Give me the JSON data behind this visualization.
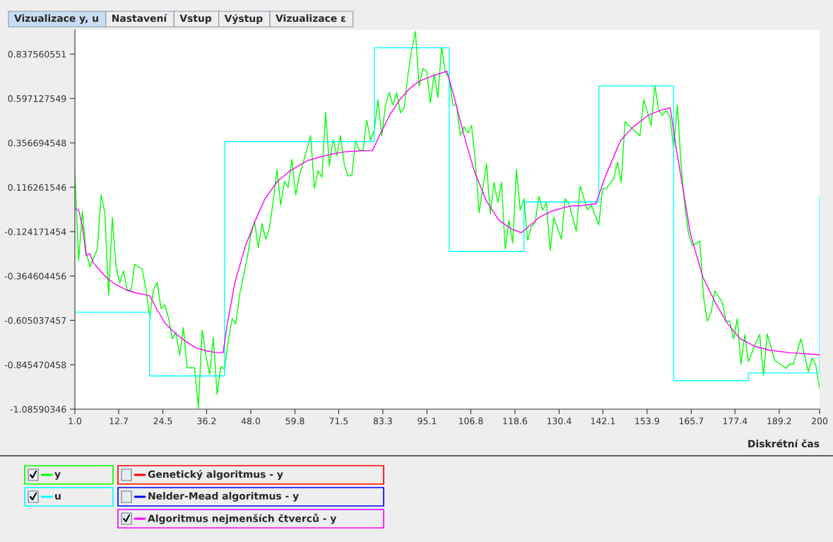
{
  "chart_data": {
    "type": "line",
    "xlabel": "Diskrétní čas",
    "annotations": [
      "Vizualizace y, u",
      "Nastavení",
      "Vstup",
      "Výstup",
      "Vizualizace ε",
      "Genetický algoritmus - y",
      "Nelder-Mead algoritmus - y"
    ],
    "xlim": [
      1,
      200
    ],
    "ylim": [
      -1.08590346,
      0.97
    ],
    "xticks": [
      {
        "value": 1,
        "label": "1.0"
      },
      12.7,
      24.5,
      36.2,
      {
        "value": 48,
        "label": "48.0"
      },
      59.8,
      71.5,
      83.3,
      95.1,
      106.8,
      118.6,
      130.4,
      142.1,
      153.9,
      165.7,
      177.4,
      189.2,
      200
    ],
    "yticks": [
      0.837560551,
      0.597127549,
      0.356694548,
      0.116261546,
      -0.124171454,
      -0.364604456,
      -0.605037457,
      -0.845470458,
      -1.08590346
    ],
    "grid": false,
    "legend": "bottom left",
    "series": [
      {
        "name": "y",
        "color": "#00ff00",
        "x": [
          1,
          2,
          3,
          4,
          5,
          7,
          8,
          9,
          10,
          11,
          12,
          13,
          14,
          15,
          16,
          17,
          19,
          20,
          21,
          22,
          23,
          24,
          25,
          26,
          27,
          28,
          29,
          30,
          31,
          33,
          34,
          35,
          36,
          37,
          38,
          39,
          40,
          41,
          42,
          43,
          44,
          45,
          47,
          48,
          49,
          50,
          51,
          52,
          53,
          54,
          55,
          56,
          57,
          58,
          59,
          60,
          61,
          64,
          65,
          66,
          67,
          68,
          69,
          70,
          71,
          72,
          73,
          74,
          75,
          76,
          77,
          78,
          79,
          80,
          81,
          82,
          83,
          84,
          85,
          86,
          87,
          88,
          89,
          90,
          91,
          92,
          93,
          94,
          95,
          96,
          97,
          98,
          99,
          100,
          101,
          102,
          103,
          104,
          105,
          106,
          107,
          108,
          109,
          110,
          111,
          112,
          113,
          114,
          115,
          116,
          117,
          118,
          119,
          120,
          121,
          122,
          123,
          124,
          125,
          126,
          127,
          128,
          129,
          131,
          132,
          133,
          135,
          136,
          138,
          139,
          141,
          142,
          143,
          145,
          146,
          147,
          148,
          149,
          152,
          153,
          155,
          156,
          157,
          158,
          159,
          160,
          161,
          162,
          163,
          164,
          165,
          166,
          168,
          169,
          170,
          171,
          172,
          174,
          175,
          176,
          177,
          178,
          179,
          180,
          181,
          183,
          184,
          185,
          186,
          188,
          191,
          192,
          193,
          195,
          197,
          198,
          199,
          200
        ],
        "values": [
          0.184,
          -0.281,
          -0.014,
          -0.233,
          -0.315,
          -0.219,
          0.075,
          -0.021,
          -0.468,
          -0.048,
          -0.315,
          -0.404,
          -0.336,
          -0.445,
          -0.438,
          -0.301,
          -0.329,
          -0.438,
          -0.589,
          -0.438,
          -0.4,
          -0.541,
          -0.52,
          -0.589,
          -0.705,
          -0.671,
          -0.794,
          -0.644,
          -0.862,
          -0.862,
          -1.08,
          -0.657,
          -0.794,
          -0.897,
          -0.698,
          -1.006,
          -0.856,
          -0.869,
          -0.712,
          -0.596,
          -0.623,
          -0.466,
          -0.274,
          -0.144,
          -0.069,
          -0.212,
          -0.082,
          -0.165,
          -0.103,
          0.041,
          0.212,
          0.02,
          0.15,
          0.116,
          0.266,
          0.075,
          0.178,
          0.396,
          0.109,
          0.205,
          0.171,
          0.52,
          0.232,
          0.376,
          0.287,
          0.396,
          0.239,
          0.178,
          0.18,
          0.369,
          0.317,
          0.317,
          0.479,
          0.369,
          0.424,
          0.588,
          0.396,
          0.561,
          0.629,
          0.561,
          0.629,
          0.52,
          0.547,
          0.725,
          0.862,
          0.96,
          0.663,
          0.759,
          0.745,
          0.574,
          0.732,
          0.602,
          0.875,
          0.739,
          0.711,
          0.561,
          0.561,
          0.396,
          0.444,
          0.41,
          0.451,
          0.26,
          -0.021,
          0.109,
          0.246,
          -0.028,
          0.143,
          0.034,
          0.143,
          -0.219,
          -0.062,
          -0.185,
          0.212,
          -0.007,
          0.054,
          -0.171,
          -0.096,
          -0.076,
          0.068,
          -0.007,
          0.034,
          -0.226,
          -0.048,
          -0.165,
          0.054,
          0.027,
          -0.121,
          0.123,
          -0.007,
          0.02,
          -0.089,
          0.109,
          0.109,
          0.164,
          0.253,
          0.143,
          0.472,
          0.451,
          0.396,
          0.591,
          0.451,
          0.667,
          0.533,
          0.506,
          0.533,
          0.499,
          0.328,
          0.561,
          0.232,
          0.013,
          -0.137,
          -0.199,
          -0.175,
          -0.479,
          -0.609,
          -0.561,
          -0.445,
          -0.507,
          -0.609,
          -0.609,
          -0.705,
          -0.596,
          -0.842,
          -0.684,
          -0.828,
          -0.725,
          -0.681,
          -0.904,
          -0.678,
          -0.821,
          -0.865,
          -0.842,
          -0.842,
          -0.705,
          -0.883,
          -0.808,
          -0.849,
          -0.972
        ]
      },
      {
        "name": "u",
        "type": "step",
        "color": "#00ffff",
        "x": [
          1,
          21,
          41,
          81,
          101,
          121,
          141,
          161,
          181,
          200
        ],
        "values": [
          -0.561,
          -0.906,
          0.363,
          0.872,
          -0.231,
          0.037,
          0.665,
          -0.932,
          -0.89,
          0.06
        ]
      },
      {
        "name": "Algoritmus nejmenších čtverců - y",
        "color": "#ff00ff",
        "x": [
          1,
          2,
          3,
          4,
          5,
          6,
          8,
          10,
          12,
          14.6,
          17.2,
          19.8,
          21,
          23,
          25.2,
          28,
          30.6,
          33.3,
          36,
          38.3,
          40.6,
          41.8,
          43.8,
          46.5,
          49.1,
          51.8,
          55.2,
          58.5,
          63.1,
          66.5,
          69.1,
          73.1,
          77.7,
          80.5,
          82.4,
          85.1,
          87.7,
          90.4,
          93,
          96.4,
          100.4,
          102.4,
          105,
          107.7,
          111,
          114.3,
          117.7,
          120.3,
          122.3,
          125,
          128.3,
          131.6,
          134,
          136.2,
          140.2,
          142.8,
          146.8,
          150.2,
          154.2,
          157.5,
          160.1,
          161.8,
          163.5,
          165.5,
          168.8,
          172.1,
          175.4,
          178.8,
          182.8,
          186.8,
          192.1,
          200
        ],
        "values": [
          0.0,
          -0.007,
          -0.096,
          -0.253,
          -0.244,
          -0.295,
          -0.342,
          -0.383,
          -0.411,
          -0.438,
          -0.456,
          -0.466,
          -0.472,
          -0.548,
          -0.623,
          -0.678,
          -0.719,
          -0.753,
          -0.769,
          -0.778,
          -0.78,
          -0.616,
          -0.397,
          -0.206,
          -0.069,
          0.054,
          0.15,
          0.205,
          0.26,
          0.28,
          0.294,
          0.308,
          0.314,
          0.314,
          0.396,
          0.506,
          0.588,
          0.65,
          0.691,
          0.718,
          0.745,
          0.602,
          0.396,
          0.205,
          0.041,
          -0.062,
          -0.11,
          -0.13,
          -0.096,
          -0.048,
          -0.014,
          0.006,
          0.016,
          0.016,
          0.027,
          0.178,
          0.369,
          0.444,
          0.506,
          0.533,
          0.547,
          0.314,
          0.109,
          -0.137,
          -0.37,
          -0.507,
          -0.623,
          -0.705,
          -0.746,
          -0.767,
          -0.78,
          -0.791
        ]
      }
    ]
  }
}
